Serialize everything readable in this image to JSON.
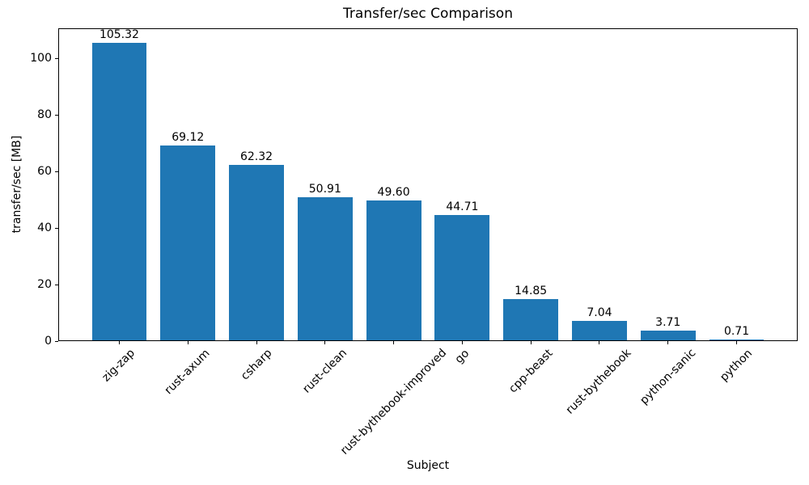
{
  "chart_data": {
    "type": "bar",
    "title": "Transfer/sec Comparison",
    "xlabel": "Subject",
    "ylabel": "transfer/sec [MB]",
    "categories": [
      "zig-zap",
      "rust-axum",
      "csharp",
      "rust-clean",
      "rust-bythebook-improved",
      "go",
      "cpp-beast",
      "rust-bythebook",
      "python-sanic",
      "python"
    ],
    "values": [
      105.32,
      69.12,
      62.32,
      50.91,
      49.6,
      44.71,
      14.85,
      7.04,
      3.71,
      0.71
    ],
    "value_labels": [
      "105.32",
      "69.12",
      "62.32",
      "50.91",
      "49.60",
      "44.71",
      "14.85",
      "7.04",
      "3.71",
      "0.71"
    ],
    "bar_color": "#1f77b4",
    "text_color": "#000000",
    "ylim": [
      0,
      110.59
    ],
    "yticks": [
      0,
      20,
      40,
      60,
      80,
      100
    ],
    "bar_width_fraction": 0.8,
    "x_tick_rotation_deg": 45,
    "grid": false,
    "legend": null
  }
}
